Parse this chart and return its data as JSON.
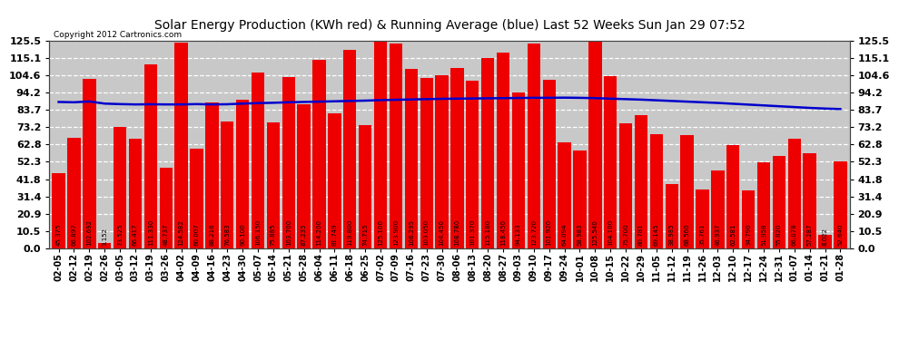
{
  "title": "Solar Energy Production (KWh red) & Running Average (blue) Last 52 Weeks Sun Jan 29 07:52",
  "copyright": "Copyright 2012 Cartronics.com",
  "bar_color": "#ee0000",
  "avg_line_color": "#0000cc",
  "background_color": "#ffffff",
  "plot_bg_color": "#c8c8c8",
  "grid_color": "#ffffff",
  "ylim": [
    0.0,
    125.5
  ],
  "yticks": [
    0.0,
    10.5,
    20.9,
    31.4,
    41.8,
    52.3,
    62.8,
    73.2,
    83.7,
    94.2,
    104.6,
    115.1,
    125.5
  ],
  "categories": [
    "02-05",
    "02-12",
    "02-19",
    "02-26",
    "03-05",
    "03-12",
    "03-19",
    "03-26",
    "04-02",
    "04-09",
    "04-16",
    "04-23",
    "04-30",
    "05-07",
    "05-14",
    "05-21",
    "05-28",
    "06-04",
    "06-11",
    "06-18",
    "06-25",
    "07-02",
    "07-09",
    "07-16",
    "07-23",
    "07-30",
    "08-06",
    "08-13",
    "08-20",
    "08-27",
    "09-03",
    "09-10",
    "09-17",
    "09-24",
    "10-01",
    "10-08",
    "10-15",
    "10-22",
    "10-29",
    "11-05",
    "11-12",
    "11-19",
    "11-26",
    "12-03",
    "12-10",
    "12-17",
    "12-24",
    "12-31",
    "01-07",
    "01-14",
    "01-21",
    "01-28"
  ],
  "values": [
    45.375,
    66.897,
    102.692,
    3.152,
    73.525,
    66.417,
    111.33,
    48.737,
    124.582,
    60.007,
    88.216,
    76.583,
    90.1,
    106.15,
    75.885,
    103.7,
    87.235,
    114.2,
    81.749,
    119.8,
    74.715,
    125.1,
    123.9,
    108.295,
    103.05,
    104.45,
    108.78,
    101.37,
    115.18,
    118.45,
    94.133,
    123.72,
    101.92,
    64.094,
    58.983,
    125.54,
    104.1,
    75.7,
    80.781,
    69.145,
    38.985,
    68.56,
    35.761,
    46.937,
    62.581,
    34.79,
    51.958,
    55.82,
    66.078,
    57.287,
    8.022,
    52.64
  ],
  "running_avg": [
    88.5,
    88.3,
    88.8,
    87.5,
    87.2,
    87.0,
    87.1,
    87.0,
    87.0,
    87.2,
    87.0,
    87.1,
    87.5,
    87.8,
    88.0,
    88.3,
    88.5,
    88.7,
    88.9,
    89.1,
    89.3,
    89.6,
    89.8,
    90.0,
    90.2,
    90.4,
    90.5,
    90.6,
    90.7,
    90.8,
    90.9,
    91.0,
    91.0,
    91.1,
    91.0,
    90.8,
    90.5,
    90.2,
    89.9,
    89.5,
    89.1,
    88.7,
    88.3,
    87.9,
    87.4,
    86.9,
    86.4,
    85.9,
    85.4,
    84.9,
    84.5,
    84.2
  ],
  "label_color_in_bar": "#000000",
  "label_color_small": "#cc0000",
  "title_fontsize": 10,
  "tick_fontsize": 8,
  "bar_label_fontsize": 5.0,
  "copyright_fontsize": 6.5
}
